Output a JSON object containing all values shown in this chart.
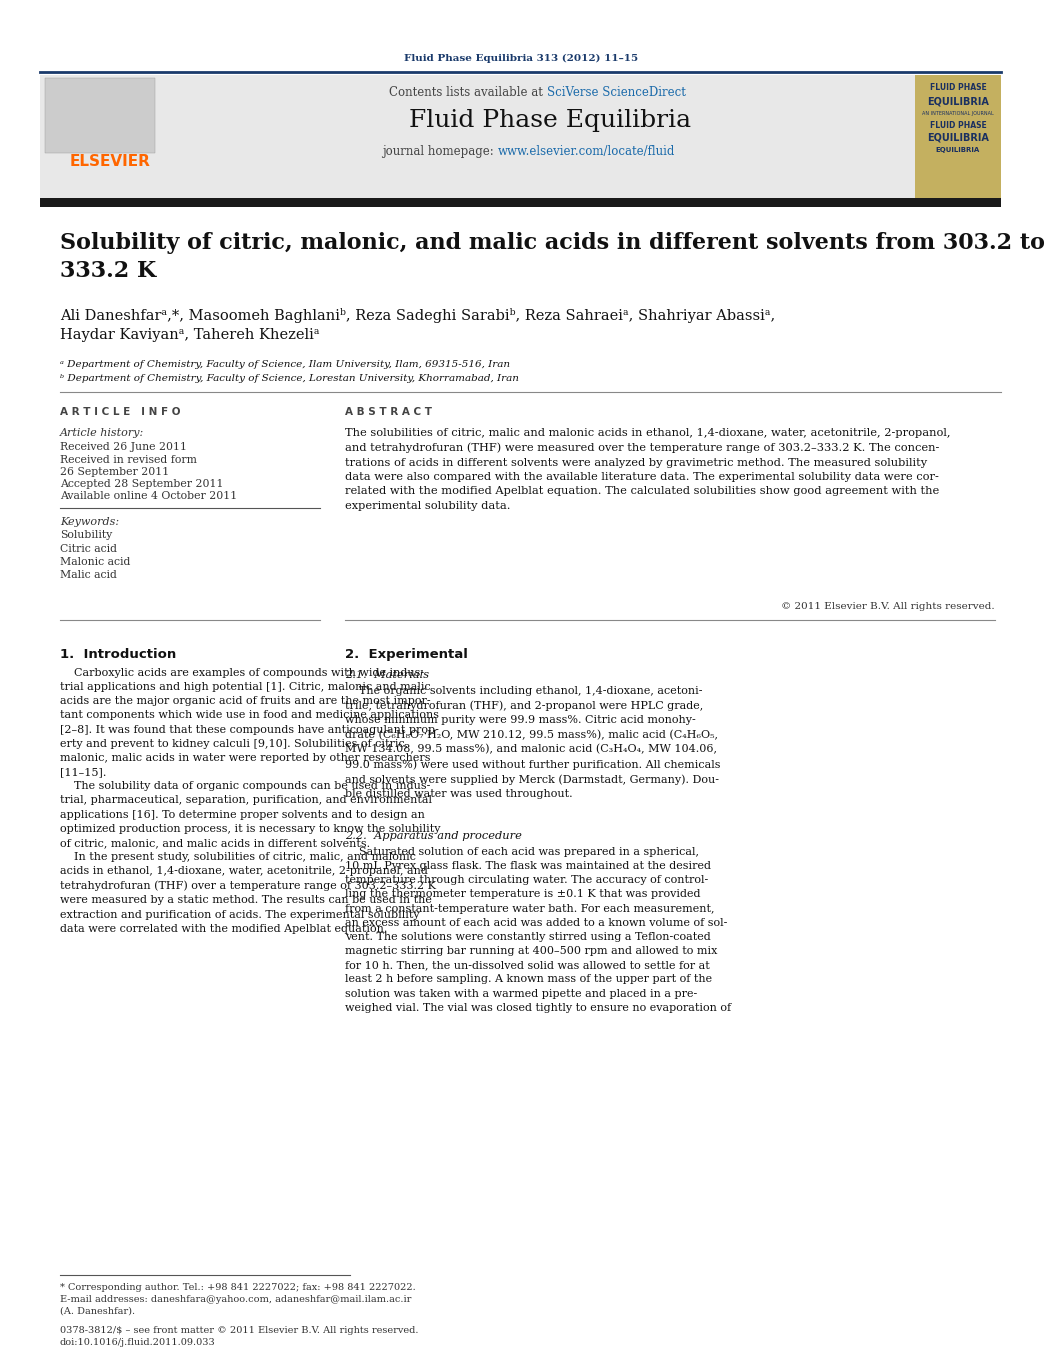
{
  "bg_color": "#ffffff",
  "header_line_color": "#1a3a6b",
  "journal_ref": "Fluid Phase Equilibria 313 (2012) 11–15",
  "journal_ref_color": "#1a3a6b",
  "contents_text": "Contents lists available at ",
  "sciverse_text": "SciVerse ScienceDirect",
  "sciverse_color": "#1a6aaa",
  "journal_title": "Fluid Phase Equilibria",
  "homepage_text": "journal homepage: ",
  "homepage_url": "www.elsevier.com/locate/fluid",
  "homepage_url_color": "#1a6aaa",
  "elsevier_color": "#ff6600",
  "header_bg": "#e8e8e8",
  "thick_bar_color": "#1a1a1a",
  "paper_title": "Solubility of citric, malonic, and malic acids in different solvents from 303.2 to\n333.2 K",
  "authors_line1": "Ali Daneshfarᵃ,*, Masoomeh Baghlaniᵇ, Reza Sadeghi Sarabiᵇ, Reza Sahraeiᵃ, Shahriyar Abassiᵃ,",
  "authors_line2": "Haydar Kaviyanᵃ, Tahereh Khezeliᵃ",
  "affil_a": "ᵃ Department of Chemistry, Faculty of Science, Ilam University, Ilam, 69315-516, Iran",
  "affil_b": "ᵇ Department of Chemistry, Faculty of Science, Lorestan University, Khorramabad, Iran",
  "article_info_title": "A R T I C L E   I N F O",
  "abstract_title": "A B S T R A C T",
  "article_history_label": "Article history:",
  "received_1": "Received 26 June 2011",
  "received_2": "Received in revised form",
  "received_2b": "26 September 2011",
  "accepted": "Accepted 28 September 2011",
  "available": "Available online 4 October 2011",
  "keywords_label": "Keywords:",
  "keywords": [
    "Solubility",
    "Citric acid",
    "Malonic acid",
    "Malic acid"
  ],
  "abstract_text": "The solubilities of citric, malic and malonic acids in ethanol, 1,4-dioxane, water, acetonitrile, 2-propanol,\nand tetrahydrofuran (THF) were measured over the temperature range of 303.2–333.2 K. The concen-\ntrations of acids in different solvents were analyzed by gravimetric method. The measured solubility\ndata were also compared with the available literature data. The experimental solubility data were cor-\nrelated with the modified Apelblat equation. The calculated solubilities show good agreement with the\nexperimental solubility data.",
  "copyright": "© 2011 Elsevier B.V. All rights reserved.",
  "section1_title": "1.  Introduction",
  "section1_text": "    Carboxylic acids are examples of compounds with wide indus-\ntrial applications and high potential [1]. Citric, malonic and malic\nacids are the major organic acid of fruits and are the most impor-\ntant components which wide use in food and medicine applications\n[2–8]. It was found that these compounds have anticoagulant prop-\nerty and prevent to kidney calculi [9,10]. Solubilities of citric,\nmalonic, malic acids in water were reported by other researchers\n[11–15].\n    The solubility data of organic compounds can be used in indus-\ntrial, pharmaceutical, separation, purification, and environmental\napplications [16]. To determine proper solvents and to design an\noptimized production process, it is necessary to know the solubility\nof citric, malonic, and malic acids in different solvents.\n    In the present study, solubilities of citric, malic, and malonic\nacids in ethanol, 1,4-dioxane, water, acetonitrile, 2-propanol, and\ntetrahydrofuran (THF) over a temperature range of 303.2–333.2 K\nwere measured by a static method. The results can be used in the\nextraction and purification of acids. The experimental solubility\ndata were correlated with the modified Apelblat equation.",
  "section2_title": "2.  Experimental",
  "section21_title": "2.1.  Materials",
  "section21_text": "    The organic solvents including ethanol, 1,4-dioxane, acetoni-\ntrile, tetrahydrofuran (THF), and 2-propanol were HPLC grade,\nwhose minimum purity were 99.9 mass%. Citric acid monohy-\ndrate (C₆H₈O₇·H₂O, MW 210.12, 99.5 mass%), malic acid (C₄H₆O₅,\nMW 134.08, 99.5 mass%), and malonic acid (C₃H₄O₄, MW 104.06,\n99.0 mass%) were used without further purification. All chemicals\nand solvents were supplied by Merck (Darmstadt, Germany). Dou-\nble distilled water was used throughout.",
  "section22_title": "2.2.  Apparatus and procedure",
  "section22_text": "    Saturated solution of each acid was prepared in a spherical,\n10 mL Pyrex glass flask. The flask was maintained at the desired\ntemperature through circulating water. The accuracy of control-\nling the thermometer temperature is ±0.1 K that was provided\nfrom a constant-temperature water bath. For each measurement,\nan excess amount of each acid was added to a known volume of sol-\nvent. The solutions were constantly stirred using a Teflon-coated\nmagnetic stirring bar running at 400–500 rpm and allowed to mix\nfor 10 h. Then, the un-dissolved solid was allowed to settle for at\nleast 2 h before sampling. A known mass of the upper part of the\nsolution was taken with a warmed pipette and placed in a pre-\nweighed vial. The vial was closed tightly to ensure no evaporation of",
  "footnote_star": "* Corresponding author. Tel.: +98 841 2227022; fax: +98 841 2227022.",
  "footnote_email": "E-mail addresses: daneshfara@yahoo.com, adaneshfar@mail.ilam.ac.ir",
  "footnote_email2": "(A. Daneshfar).",
  "footnote_issn": "0378-3812/$ – see front matter © 2011 Elsevier B.V. All rights reserved.",
  "footnote_doi": "doi:10.1016/j.fluid.2011.09.033"
}
